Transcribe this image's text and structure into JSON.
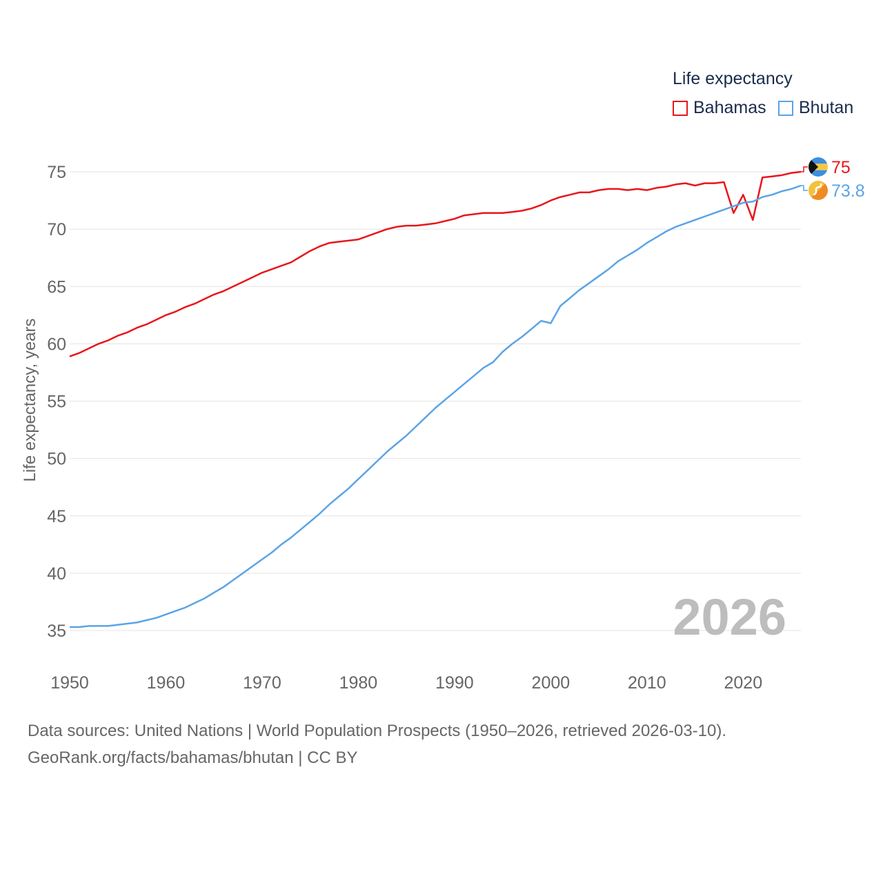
{
  "legend": {
    "title": "Life expectancy",
    "items": [
      {
        "label": "Bahamas",
        "color": "#e8161b"
      },
      {
        "label": "Bhutan",
        "color": "#5ba4e5"
      }
    ]
  },
  "footer": {
    "line1": "Data sources: United Nations | World Population Prospects (1950–2026, retrieved 2026-03-10).",
    "line2": "GeoRank.org/facts/bahamas/bhutan | CC BY"
  },
  "chart_data": {
    "type": "line",
    "title": "Life expectancy",
    "xlabel": "",
    "ylabel": "Life expectancy, years",
    "year_label": "2026",
    "xlim": [
      1950,
      2026
    ],
    "ylim": [
      33.5,
      76.5
    ],
    "x_ticks": [
      "1950",
      "1960",
      "1970",
      "1980",
      "1990",
      "2000",
      "2010",
      "2020"
    ],
    "y_ticks": [
      "35",
      "40",
      "45",
      "50",
      "55",
      "60",
      "65",
      "70",
      "75"
    ],
    "grid": true,
    "legend_position": "top-right",
    "x": [
      1950,
      1951,
      1952,
      1953,
      1954,
      1955,
      1956,
      1957,
      1958,
      1959,
      1960,
      1961,
      1962,
      1963,
      1964,
      1965,
      1966,
      1967,
      1968,
      1969,
      1970,
      1971,
      1972,
      1973,
      1974,
      1975,
      1976,
      1977,
      1978,
      1979,
      1980,
      1981,
      1982,
      1983,
      1984,
      1985,
      1986,
      1987,
      1988,
      1989,
      1990,
      1991,
      1992,
      1993,
      1994,
      1995,
      1996,
      1997,
      1998,
      1999,
      2000,
      2001,
      2002,
      2003,
      2004,
      2005,
      2006,
      2007,
      2008,
      2009,
      2010,
      2011,
      2012,
      2013,
      2014,
      2015,
      2016,
      2017,
      2018,
      2019,
      2020,
      2021,
      2022,
      2023,
      2024,
      2025,
      2026
    ],
    "series": [
      {
        "name": "Bahamas",
        "color": "#e8161b",
        "end_label": "75",
        "flag_icon": "bahamas-flag-icon",
        "values": [
          58.9,
          59.2,
          59.6,
          60.0,
          60.3,
          60.7,
          61.0,
          61.4,
          61.7,
          62.1,
          62.5,
          62.8,
          63.2,
          63.5,
          63.9,
          64.3,
          64.6,
          65.0,
          65.4,
          65.8,
          66.2,
          66.5,
          66.8,
          67.1,
          67.6,
          68.1,
          68.5,
          68.8,
          68.9,
          69.0,
          69.1,
          69.4,
          69.7,
          70.0,
          70.2,
          70.3,
          70.3,
          70.4,
          70.5,
          70.7,
          70.9,
          71.2,
          71.3,
          71.4,
          71.4,
          71.4,
          71.5,
          71.6,
          71.8,
          72.1,
          72.5,
          72.8,
          73.0,
          73.2,
          73.2,
          73.4,
          73.5,
          73.5,
          73.4,
          73.5,
          73.4,
          73.6,
          73.7,
          73.9,
          74.0,
          73.8,
          74.0,
          74.0,
          74.1,
          71.4,
          73.0,
          70.8,
          74.5,
          74.6,
          74.7,
          74.9,
          75.0
        ]
      },
      {
        "name": "Bhutan",
        "color": "#5ba4e5",
        "end_label": "73.8",
        "flag_icon": "bhutan-flag-icon",
        "values": [
          35.3,
          35.3,
          35.4,
          35.4,
          35.4,
          35.5,
          35.6,
          35.7,
          35.9,
          36.1,
          36.4,
          36.7,
          37.0,
          37.4,
          37.8,
          38.3,
          38.8,
          39.4,
          40.0,
          40.6,
          41.2,
          41.8,
          42.5,
          43.1,
          43.8,
          44.5,
          45.2,
          46.0,
          46.7,
          47.4,
          48.2,
          49.0,
          49.8,
          50.6,
          51.3,
          52.0,
          52.8,
          53.6,
          54.4,
          55.1,
          55.8,
          56.5,
          57.2,
          57.9,
          58.4,
          59.3,
          60.0,
          60.6,
          61.3,
          62.0,
          61.8,
          63.3,
          64.0,
          64.7,
          65.3,
          65.9,
          66.5,
          67.2,
          67.7,
          68.2,
          68.8,
          69.3,
          69.8,
          70.2,
          70.5,
          70.8,
          71.1,
          71.4,
          71.7,
          72.0,
          72.3,
          72.4,
          72.8,
          73.0,
          73.3,
          73.5,
          73.8
        ]
      }
    ]
  }
}
